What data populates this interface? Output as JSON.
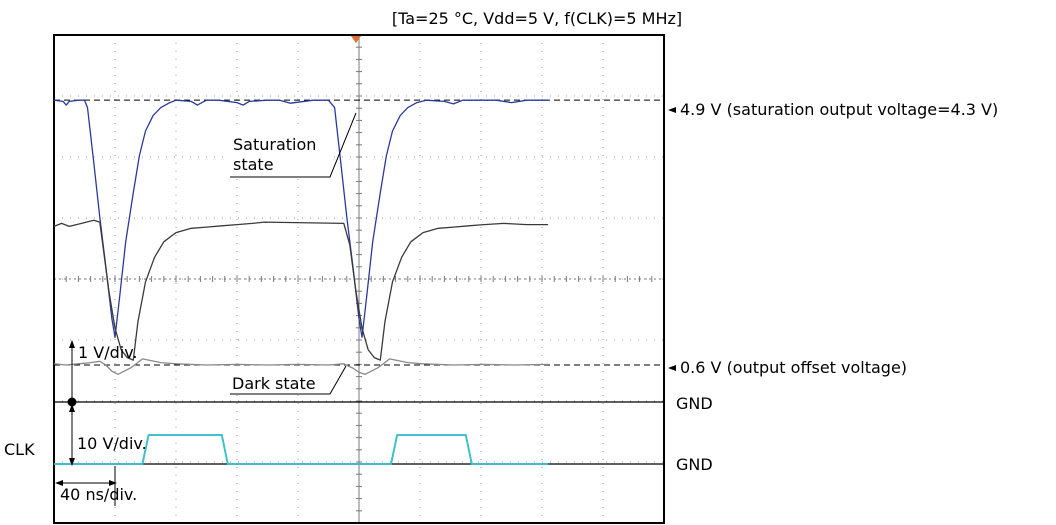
{
  "header": {
    "conditions": "[Ta=25 °C, Vdd=5 V, f(CLK)=5 MHz]"
  },
  "labels": {
    "saturation_level": "4.9 V (saturation output voltage=4.3 V)",
    "offset_level": "0.6 V (output offset voltage)",
    "gnd_signal": "GND",
    "gnd_clk": "GND",
    "clk": "CLK",
    "volt_div_signal": "1 V/div.",
    "volt_div_clk": "10 V/div.",
    "time_div": "40 ns/div.",
    "saturation_state": "Saturation\nstate",
    "dark_state": "Dark state"
  },
  "colors": {
    "saturation_trace": "#2a3a9a",
    "intermediate_trace": "#3a3a3a",
    "dark_trace": "#888888",
    "clk_trace": "#3cc0cc",
    "trigger_marker": "#e07030",
    "frame": "#000000",
    "grid": "#9a9a9a"
  },
  "chart_data": {
    "type": "line",
    "x_unit": "ns",
    "x_range": [
      0,
      400
    ],
    "time_div_ns": 40,
    "signal_volt_div": 1,
    "clk_volt_div": 10,
    "grid": true,
    "series": [
      {
        "name": "Saturation state",
        "unit": "V",
        "points": [
          [
            0,
            4.9
          ],
          [
            6,
            4.88
          ],
          [
            8,
            4.82
          ],
          [
            10,
            4.88
          ],
          [
            16,
            4.9
          ],
          [
            20,
            4.9
          ],
          [
            22,
            4.78
          ],
          [
            26,
            3.9
          ],
          [
            30,
            3.0
          ],
          [
            34,
            2.2
          ],
          [
            38,
            1.35
          ],
          [
            40,
            1.05
          ],
          [
            43,
            1.7
          ],
          [
            47,
            2.6
          ],
          [
            52,
            3.4
          ],
          [
            56,
            4.0
          ],
          [
            60,
            4.4
          ],
          [
            65,
            4.65
          ],
          [
            70,
            4.78
          ],
          [
            76,
            4.86
          ],
          [
            80,
            4.9
          ],
          [
            90,
            4.88
          ],
          [
            94,
            4.82
          ],
          [
            100,
            4.9
          ],
          [
            108,
            4.9
          ],
          [
            120,
            4.86
          ],
          [
            124,
            4.82
          ],
          [
            128,
            4.88
          ],
          [
            140,
            4.9
          ],
          [
            148,
            4.9
          ],
          [
            155,
            4.85
          ],
          [
            170,
            4.9
          ],
          [
            180,
            4.9
          ],
          [
            184,
            4.78
          ],
          [
            188,
            3.9
          ],
          [
            192,
            3.0
          ],
          [
            196,
            2.2
          ],
          [
            200,
            1.35
          ],
          [
            202,
            1.05
          ],
          [
            205,
            1.7
          ],
          [
            209,
            2.6
          ],
          [
            214,
            3.4
          ],
          [
            218,
            4.0
          ],
          [
            222,
            4.4
          ],
          [
            227,
            4.65
          ],
          [
            232,
            4.78
          ],
          [
            238,
            4.86
          ],
          [
            244,
            4.9
          ],
          [
            256,
            4.88
          ],
          [
            262,
            4.84
          ],
          [
            268,
            4.9
          ],
          [
            290,
            4.9
          ],
          [
            300,
            4.86
          ],
          [
            310,
            4.9
          ],
          [
            324,
            4.9
          ]
        ]
      },
      {
        "name": "",
        "unit": "V",
        "points": [
          [
            0,
            2.85
          ],
          [
            5,
            2.9
          ],
          [
            10,
            2.85
          ],
          [
            18,
            2.9
          ],
          [
            26,
            2.95
          ],
          [
            30,
            2.92
          ],
          [
            32,
            2.55
          ],
          [
            36,
            1.8
          ],
          [
            40,
            1.2
          ],
          [
            44,
            0.85
          ],
          [
            48,
            0.72
          ],
          [
            52,
            0.68
          ],
          [
            55,
            1.3
          ],
          [
            60,
            1.95
          ],
          [
            66,
            2.35
          ],
          [
            72,
            2.6
          ],
          [
            80,
            2.75
          ],
          [
            90,
            2.82
          ],
          [
            100,
            2.84
          ],
          [
            110,
            2.86
          ],
          [
            120,
            2.88
          ],
          [
            130,
            2.9
          ],
          [
            138,
            2.92
          ],
          [
            190,
            2.9
          ],
          [
            194,
            2.55
          ],
          [
            198,
            1.8
          ],
          [
            202,
            1.2
          ],
          [
            206,
            0.85
          ],
          [
            210,
            0.72
          ],
          [
            214,
            0.68
          ],
          [
            217,
            1.3
          ],
          [
            222,
            1.95
          ],
          [
            228,
            2.35
          ],
          [
            234,
            2.6
          ],
          [
            242,
            2.75
          ],
          [
            252,
            2.82
          ],
          [
            262,
            2.84
          ],
          [
            272,
            2.86
          ],
          [
            282,
            2.88
          ],
          [
            295,
            2.9
          ],
          [
            310,
            2.88
          ],
          [
            324,
            2.88
          ]
        ]
      },
      {
        "name": "Dark state",
        "unit": "V",
        "points": [
          [
            0,
            0.62
          ],
          [
            8,
            0.6
          ],
          [
            16,
            0.62
          ],
          [
            24,
            0.64
          ],
          [
            30,
            0.66
          ],
          [
            34,
            0.6
          ],
          [
            38,
            0.5
          ],
          [
            42,
            0.45
          ],
          [
            46,
            0.5
          ],
          [
            50,
            0.55
          ],
          [
            54,
            0.62
          ],
          [
            58,
            0.7
          ],
          [
            62,
            0.68
          ],
          [
            70,
            0.64
          ],
          [
            80,
            0.62
          ],
          [
            100,
            0.6
          ],
          [
            120,
            0.61
          ],
          [
            140,
            0.6
          ],
          [
            160,
            0.61
          ],
          [
            180,
            0.6
          ],
          [
            190,
            0.62
          ],
          [
            196,
            0.55
          ],
          [
            200,
            0.48
          ],
          [
            204,
            0.45
          ],
          [
            208,
            0.5
          ],
          [
            212,
            0.55
          ],
          [
            216,
            0.62
          ],
          [
            220,
            0.7
          ],
          [
            224,
            0.68
          ],
          [
            232,
            0.64
          ],
          [
            242,
            0.62
          ],
          [
            262,
            0.6
          ],
          [
            282,
            0.61
          ],
          [
            302,
            0.6
          ],
          [
            324,
            0.61
          ]
        ]
      },
      {
        "name": "CLK",
        "unit": "V",
        "points": [
          [
            0,
            0
          ],
          [
            58,
            0
          ],
          [
            60,
            5
          ],
          [
            62,
            10
          ],
          [
            110,
            10
          ],
          [
            112,
            5
          ],
          [
            114,
            0
          ],
          [
            221,
            0
          ],
          [
            223,
            5
          ],
          [
            225,
            10
          ],
          [
            270,
            10
          ],
          [
            272,
            5
          ],
          [
            274,
            0
          ],
          [
            324,
            0
          ]
        ]
      }
    ],
    "reference_levels": [
      {
        "label": "4.9 V (saturation output voltage=4.3 V)",
        "value": 4.9
      },
      {
        "label": "0.6 V (output offset voltage)",
        "value": 0.6
      }
    ]
  }
}
